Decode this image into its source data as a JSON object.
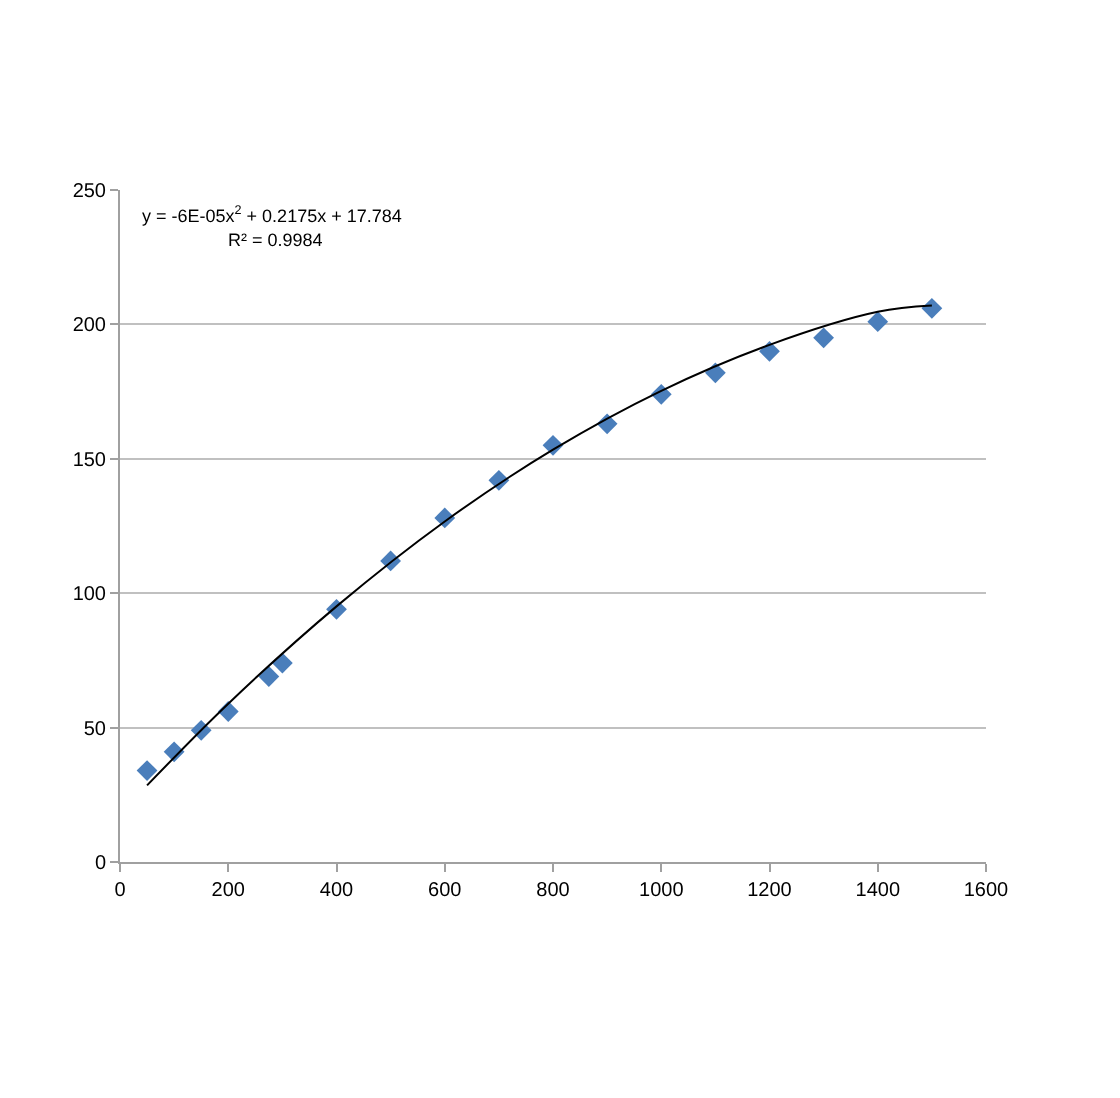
{
  "chart_data": {
    "type": "scatter",
    "marker": "diamond",
    "grid": "y",
    "xlim": [
      0,
      1600
    ],
    "xticks": [
      0,
      200,
      400,
      600,
      800,
      1000,
      1200,
      1400,
      1600
    ],
    "ylim": [
      0,
      250
    ],
    "yticks": [
      0,
      50,
      100,
      150,
      200,
      250
    ],
    "annotations": [
      "y = -6E-05x$^{2}$ + 0.2175x + 17.784",
      "R² = 0.9984"
    ],
    "series": [
      {
        "color": "#4a7ebb",
        "x": [
          50,
          100,
          150,
          200,
          275,
          300,
          400,
          500,
          600,
          700,
          800,
          900,
          1000,
          1100,
          1200,
          1300,
          1400,
          1500
        ],
        "values": [
          34,
          41,
          49,
          56,
          69,
          74,
          94,
          112,
          128,
          142,
          155,
          163,
          174,
          182,
          190,
          195,
          201,
          206
        ]
      },
      {
        "type": "line",
        "marker": "none",
        "color": "#000000",
        "x": [
          50,
          200,
          400,
          600,
          800,
          1000,
          1200,
          1400,
          1500
        ],
        "values": [
          28.5,
          58.9,
          95.1,
          126.7,
          153.4,
          175.3,
          192.4,
          204.7,
          207
        ]
      }
    ]
  }
}
